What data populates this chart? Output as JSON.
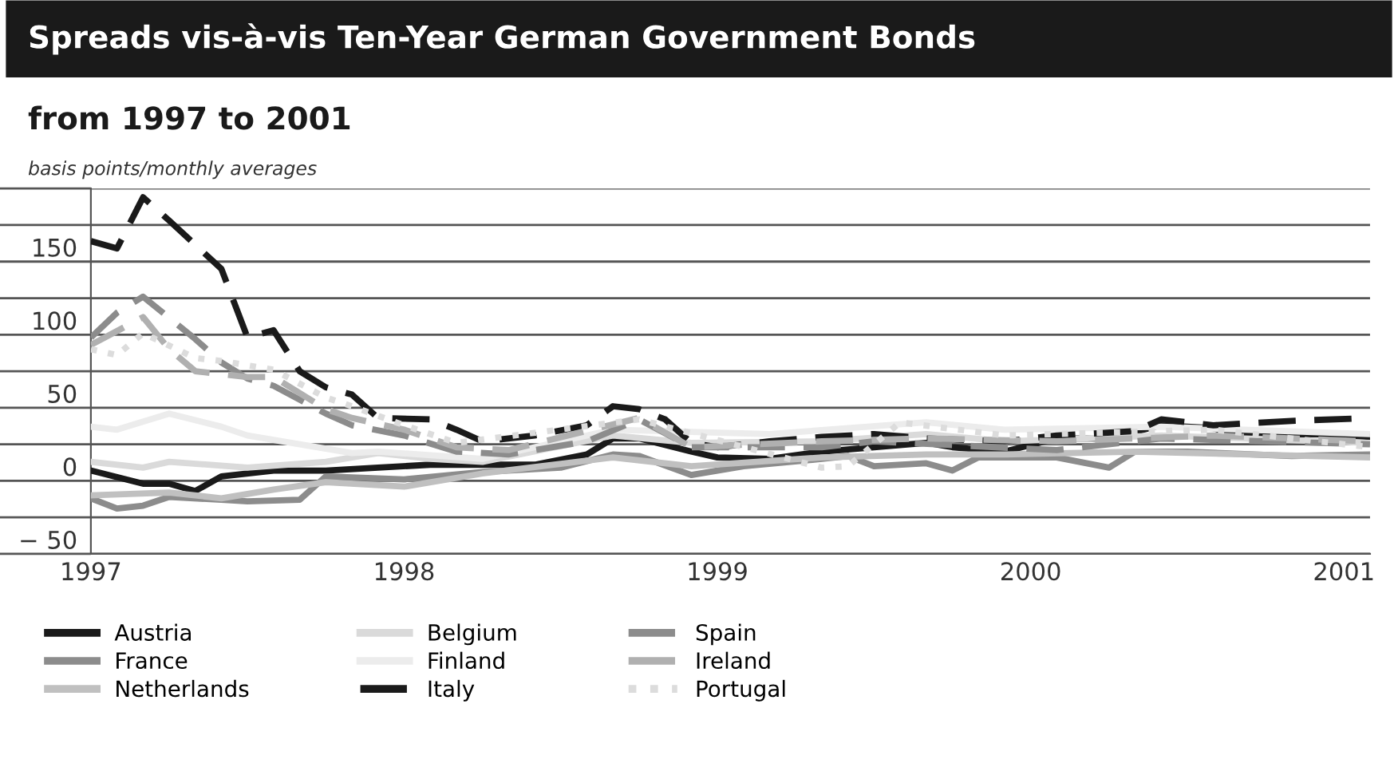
{
  "chart_data": {
    "type": "line",
    "title": "Spreads vis-à-vis Ten-Year German Government Bonds",
    "subtitle": "from 1997 to 2001",
    "ylabel": "basis points/monthly averages",
    "xlim": [
      "1997-01",
      "2001-02"
    ],
    "xticks": [
      {
        "value": "1997-01",
        "label": "1997"
      },
      {
        "value": "1998-01",
        "label": "1998"
      },
      {
        "value": "1999-01",
        "label": "1999"
      },
      {
        "value": "2000-01",
        "label": "2000"
      },
      {
        "value": "2001-01",
        "label": "2001"
      }
    ],
    "ylim": [
      -50,
      200
    ],
    "yticks": [
      {
        "value": -50,
        "label": "− 50"
      },
      {
        "value": -25,
        "label": null
      },
      0,
      {
        "value": 25,
        "label": null
      },
      50,
      {
        "value": 75,
        "label": null
      },
      100,
      {
        "value": 125,
        "label": null
      },
      150,
      {
        "value": 175,
        "label": null
      },
      {
        "value": 200,
        "label": null
      }
    ],
    "grid": "y",
    "legend": "bottom",
    "series": [
      {
        "name": "Austria",
        "color": "#1a1a1a",
        "line_style": "solid",
        "x": [
          "1997-01",
          "1997-03",
          "1997-04",
          "1997-05",
          "1997-06",
          "1997-08",
          "1997-10",
          "1997-12",
          "1998-02",
          "1998-04",
          "1998-06",
          "1998-08",
          "1998-09",
          "1998-10",
          "1998-12",
          "1999-01",
          "1999-03",
          "1999-05",
          "1999-07",
          "1999-09",
          "1999-10",
          "1999-12",
          "2000-02",
          "2000-04",
          "2000-06",
          "2000-08",
          "2000-09",
          "2000-12",
          "2001-02"
        ],
        "values": [
          7,
          -2,
          -2,
          -7,
          3,
          7,
          7,
          9,
          11,
          11,
          11,
          18,
          29,
          29,
          20,
          16,
          15,
          20,
          23,
          26,
          23,
          20,
          29,
          29,
          38,
          36,
          31,
          32,
          30
        ]
      },
      {
        "name": "France",
        "color": "#8c8c8c",
        "line_style": "solid",
        "x": [
          "1997-01",
          "1997-02",
          "1997-03",
          "1997-04",
          "1997-06",
          "1997-07",
          "1997-09",
          "1997-10",
          "1998-01",
          "1998-04",
          "1998-07",
          "1998-09",
          "1998-10",
          "1998-12",
          "1999-02",
          "1999-05",
          "1999-06",
          "1999-07",
          "1999-09",
          "1999-10",
          "1999-11",
          "2000-02",
          "2000-04",
          "2000-05",
          "2000-07",
          "2000-11",
          "2001-02"
        ],
        "values": [
          -12,
          -19,
          -17,
          -11,
          -13,
          -14,
          -13,
          3,
          1,
          6,
          9,
          18,
          17,
          4,
          10,
          15,
          17,
          10,
          12,
          7,
          16,
          16,
          9,
          20,
          20,
          17,
          18
        ]
      },
      {
        "name": "Netherlands",
        "color": "#c0c0c0",
        "line_style": "solid",
        "x": [
          "1997-01",
          "1997-04",
          "1997-06",
          "1997-08",
          "1997-10",
          "1998-01",
          "1998-04",
          "1998-09",
          "1998-12",
          "1999-05",
          "1999-09",
          "1999-12",
          "2000-05",
          "2001-02"
        ],
        "values": [
          -10,
          -8,
          -12,
          -6,
          -1,
          -4,
          5,
          16,
          10,
          16,
          18,
          18,
          20,
          16
        ]
      },
      {
        "name": "Belgium",
        "color": "#dadada",
        "line_style": "solid",
        "x": [
          "1997-01",
          "1997-03",
          "1997-04",
          "1997-07",
          "1997-10",
          "1997-12",
          "1998-02",
          "1998-04",
          "1998-09",
          "1998-12",
          "1999-05",
          "1999-09",
          "1999-12",
          "2000-06",
          "2001-02"
        ],
        "values": [
          13,
          9,
          13,
          9,
          13,
          19,
          15,
          13,
          31,
          26,
          27,
          32,
          27,
          31,
          26
        ]
      },
      {
        "name": "Finland",
        "color": "#ececec",
        "line_style": "solid",
        "x": [
          "1997-01",
          "1997-02",
          "1997-04",
          "1997-06",
          "1997-07",
          "1997-09",
          "1997-11",
          "1997-12",
          "1998-04",
          "1998-09",
          "1999-03",
          "1999-09",
          "1999-12",
          "2000-06",
          "2001-02"
        ],
        "values": [
          37,
          35,
          46,
          37,
          31,
          25,
          19,
          20,
          15,
          35,
          32,
          40,
          35,
          37,
          32
        ]
      },
      {
        "name": "Italy",
        "color": "#1a1a1a",
        "line_style": "dashed",
        "x": [
          "1997-01",
          "1997-02",
          "1997-03",
          "1997-04",
          "1997-06",
          "1997-07",
          "1997-08",
          "1997-09",
          "1997-10",
          "1997-11",
          "1997-12",
          "1998-02",
          "1998-03",
          "1998-04",
          "1998-06",
          "1998-08",
          "1998-09",
          "1998-10",
          "1998-11",
          "1998-12",
          "1999-01",
          "1999-03",
          "1999-05",
          "1999-07",
          "1999-09",
          "1999-12",
          "2000-02",
          "2000-05",
          "2000-06",
          "2000-08",
          "2000-11",
          "2001-02"
        ],
        "values": [
          164,
          159,
          194,
          178,
          145,
          98,
          103,
          75,
          64,
          59,
          43,
          42,
          35,
          27,
          31,
          38,
          51,
          49,
          42,
          26,
          23,
          27,
          30,
          32,
          29,
          27,
          31,
          34,
          42,
          38,
          41,
          43
        ]
      },
      {
        "name": "Spain",
        "color": "#8c8c8c",
        "line_style": "dashed",
        "x": [
          "1997-01",
          "1997-02",
          "1997-03",
          "1997-05",
          "1997-06",
          "1997-07",
          "1997-08",
          "1997-10",
          "1997-11",
          "1998-01",
          "1998-03",
          "1998-05",
          "1998-08",
          "1998-10",
          "1998-12",
          "1999-05",
          "1999-07",
          "2000-02",
          "2000-06",
          "2001-02"
        ],
        "values": [
          98,
          115,
          126,
          97,
          81,
          70,
          65,
          46,
          38,
          31,
          20,
          18,
          27,
          42,
          23,
          23,
          27,
          21,
          29,
          25
        ]
      },
      {
        "name": "Ireland",
        "color": "#b0b0b0",
        "line_style": "dashed",
        "x": [
          "1997-01",
          "1997-03",
          "1997-04",
          "1997-05",
          "1997-07",
          "1997-08",
          "1997-10",
          "1997-11",
          "1998-01",
          "1998-03",
          "1998-05",
          "1998-10",
          "1998-12",
          "1999-05",
          "1999-09",
          "2000-02",
          "2000-08",
          "2001-02"
        ],
        "values": [
          93,
          112,
          90,
          75,
          71,
          71,
          49,
          43,
          35,
          23,
          21,
          43,
          23,
          27,
          29,
          27,
          31,
          27
        ]
      },
      {
        "name": "Portugal",
        "color": "#dcdcdc",
        "line_style": "dotted",
        "x": [
          "1997-01",
          "1997-02",
          "1997-03",
          "1997-05",
          "1997-06",
          "1997-08",
          "1997-10",
          "1997-11",
          "1998-01",
          "1998-03",
          "1998-10",
          "1999-05",
          "1999-06",
          "1999-08",
          "1999-12",
          "2000-08",
          "2001-02"
        ],
        "values": [
          90,
          86,
          101,
          84,
          82,
          76,
          57,
          51,
          38,
          26,
          42,
          9,
          10,
          40,
          31,
          35,
          23
        ]
      }
    ]
  }
}
